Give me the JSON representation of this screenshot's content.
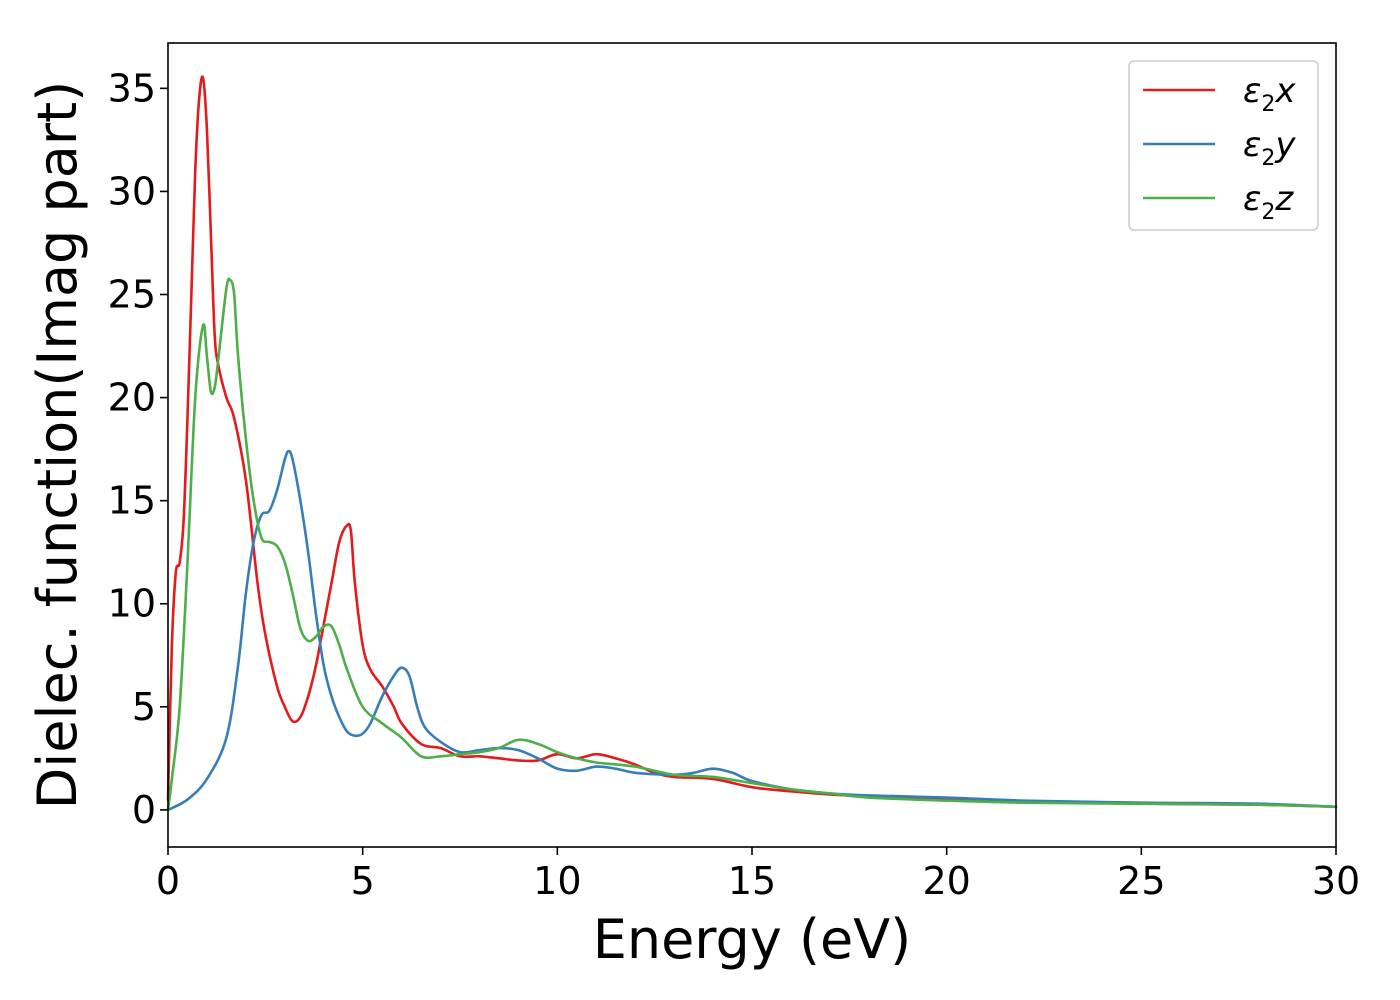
{
  "chart_data": {
    "type": "line",
    "title": "",
    "xlabel": "Energy (eV)",
    "ylabel": "Dielec. function(Imag part)",
    "xlim": [
      0,
      30
    ],
    "ylim": [
      -1.8,
      37.2
    ],
    "xticks": [
      0,
      5,
      10,
      15,
      20,
      25,
      30
    ],
    "yticks": [
      0,
      5,
      10,
      15,
      20,
      25,
      30,
      35
    ],
    "grid": false,
    "legend": "top-right",
    "legend_entries": [
      {
        "symbol": "ε",
        "sub": "2",
        "comp": "x",
        "color": "#e41a1c"
      },
      {
        "symbol": "ε",
        "sub": "2",
        "comp": "y",
        "color": "#377eb8"
      },
      {
        "symbol": "ε",
        "sub": "2",
        "comp": "z",
        "color": "#4daf4a"
      }
    ],
    "series": [
      {
        "color": "#e41a1c",
        "x": [
          0,
          0.1,
          0.2,
          0.3,
          0.4,
          0.5,
          0.6,
          0.7,
          0.8,
          0.9,
          1.0,
          1.1,
          1.2,
          1.3,
          1.5,
          1.7,
          2.0,
          2.3,
          2.5,
          2.8,
          3.0,
          3.2,
          3.4,
          3.6,
          3.8,
          4.0,
          4.2,
          4.4,
          4.6,
          4.7,
          4.8,
          5.0,
          5.2,
          5.5,
          5.8,
          6.0,
          6.5,
          7.0,
          7.5,
          8.0,
          8.5,
          9.0,
          9.5,
          10.0,
          10.5,
          11.0,
          11.5,
          12.0,
          12.5,
          13.0,
          14.0,
          15.0,
          16.0,
          17.0,
          18.0,
          20.0,
          22.0,
          25.0,
          28.0,
          30.0
        ],
        "y": [
          0.5,
          8.0,
          11.5,
          12.0,
          14.0,
          19.0,
          25.0,
          31.0,
          34.5,
          35.5,
          33.0,
          28.0,
          23.0,
          21.5,
          20.0,
          19.0,
          16.0,
          11.0,
          8.5,
          6.0,
          5.0,
          4.3,
          4.5,
          5.5,
          7.0,
          9.0,
          11.0,
          13.0,
          13.8,
          13.5,
          11.0,
          8.0,
          6.8,
          6.0,
          5.0,
          4.2,
          3.2,
          3.0,
          2.6,
          2.6,
          2.5,
          2.4,
          2.4,
          2.7,
          2.5,
          2.7,
          2.5,
          2.2,
          1.8,
          1.6,
          1.5,
          1.1,
          0.9,
          0.75,
          0.65,
          0.5,
          0.4,
          0.3,
          0.25,
          0.15
        ]
      },
      {
        "color": "#377eb8",
        "x": [
          0,
          0.5,
          1.0,
          1.5,
          1.8,
          2.0,
          2.2,
          2.4,
          2.6,
          2.8,
          3.0,
          3.1,
          3.2,
          3.4,
          3.6,
          3.8,
          4.0,
          4.2,
          4.4,
          4.6,
          4.8,
          5.0,
          5.2,
          5.5,
          5.8,
          6.0,
          6.2,
          6.4,
          6.6,
          7.0,
          7.5,
          8.0,
          8.5,
          9.0,
          9.5,
          10.0,
          10.5,
          11.0,
          11.5,
          12.0,
          13.0,
          13.5,
          14.0,
          14.5,
          15.0,
          16.0,
          17.0,
          18.0,
          20.0,
          22.0,
          25.0,
          28.0,
          30.0
        ],
        "y": [
          0.0,
          0.5,
          1.5,
          3.5,
          7.0,
          10.5,
          13.0,
          14.3,
          14.5,
          15.5,
          17.0,
          17.4,
          17.0,
          15.0,
          12.5,
          9.5,
          7.0,
          5.5,
          4.5,
          3.8,
          3.6,
          3.7,
          4.2,
          5.5,
          6.5,
          6.9,
          6.5,
          5.0,
          4.0,
          3.3,
          2.8,
          2.9,
          3.0,
          2.9,
          2.5,
          2.0,
          1.9,
          2.1,
          2.0,
          1.8,
          1.7,
          1.8,
          2.0,
          1.8,
          1.4,
          1.0,
          0.8,
          0.7,
          0.6,
          0.45,
          0.35,
          0.3,
          0.15
        ]
      },
      {
        "color": "#4daf4a",
        "x": [
          0,
          0.1,
          0.3,
          0.5,
          0.7,
          0.9,
          1.0,
          1.1,
          1.2,
          1.3,
          1.5,
          1.6,
          1.7,
          1.8,
          2.0,
          2.2,
          2.4,
          2.6,
          2.8,
          3.0,
          3.2,
          3.4,
          3.6,
          3.8,
          4.0,
          4.2,
          4.4,
          4.6,
          5.0,
          5.5,
          6.0,
          6.5,
          7.0,
          7.5,
          8.0,
          8.5,
          9.0,
          9.5,
          10.0,
          10.5,
          11.0,
          12.0,
          13.0,
          14.0,
          15.0,
          16.0,
          17.0,
          18.0,
          20.0,
          22.0,
          25.0,
          28.0,
          30.0
        ],
        "y": [
          0.0,
          1.5,
          5.0,
          12.0,
          20.0,
          23.5,
          22.0,
          20.3,
          20.5,
          22.0,
          25.3,
          25.7,
          25.0,
          22.0,
          18.0,
          15.0,
          13.2,
          13.0,
          12.8,
          12.0,
          10.5,
          8.8,
          8.2,
          8.4,
          8.9,
          8.9,
          8.0,
          6.8,
          5.0,
          4.2,
          3.5,
          2.6,
          2.6,
          2.7,
          2.8,
          3.0,
          3.4,
          3.2,
          2.8,
          2.5,
          2.3,
          2.1,
          1.7,
          1.6,
          1.3,
          1.0,
          0.8,
          0.6,
          0.45,
          0.35,
          0.3,
          0.25,
          0.15
        ]
      }
    ]
  }
}
